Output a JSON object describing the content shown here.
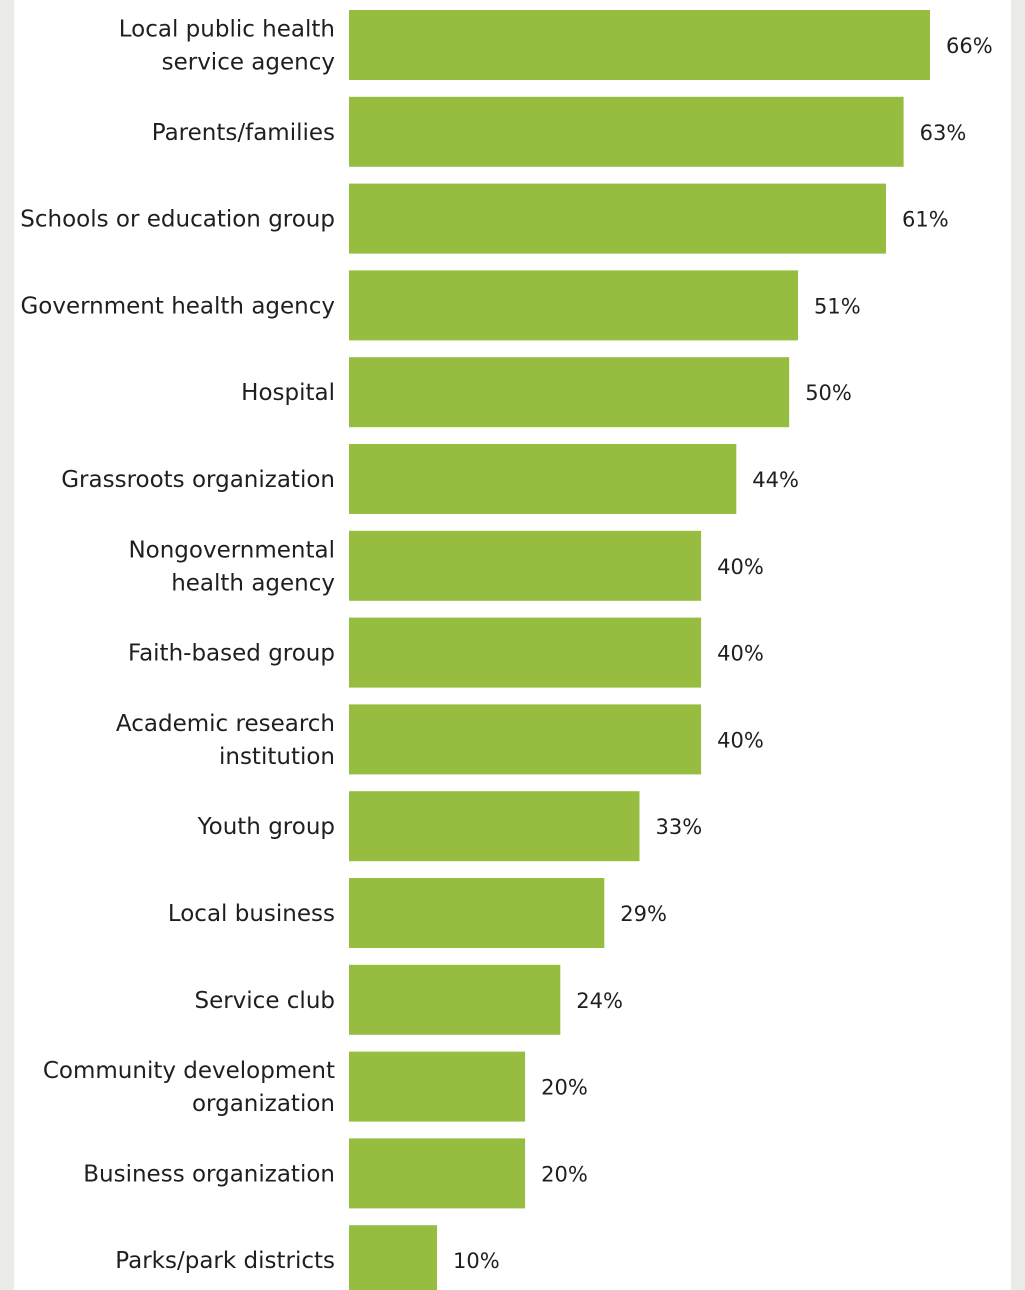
{
  "chart_data": {
    "type": "bar",
    "orientation": "horizontal",
    "categories": [
      "Local public health service agency",
      "Parents/families",
      "Schools or education group",
      "Government health agency",
      "Hospital",
      "Grassroots organization",
      "Nongovernmental health agency",
      "Faith-based group",
      "Academic research institution",
      "Youth group",
      "Local business",
      "Service club",
      "Community development organization",
      "Business organization",
      "Parks/park districts"
    ],
    "category_lines": [
      [
        "Local public health",
        "service agency"
      ],
      [
        "Parents/families"
      ],
      [
        "Schools or education group"
      ],
      [
        "Government health agency"
      ],
      [
        "Hospital"
      ],
      [
        "Grassroots organization"
      ],
      [
        "Nongovernmental",
        "health agency"
      ],
      [
        "Faith-based group"
      ],
      [
        "Academic research",
        "institution"
      ],
      [
        "Youth group"
      ],
      [
        "Local business"
      ],
      [
        "Service club"
      ],
      [
        "Community development",
        "organization"
      ],
      [
        "Business organization"
      ],
      [
        "Parks/park districts"
      ]
    ],
    "values": [
      66,
      63,
      61,
      51,
      50,
      44,
      40,
      40,
      40,
      33,
      29,
      24,
      20,
      20,
      10
    ],
    "value_labels": [
      "66%",
      "63%",
      "61%",
      "51%",
      "50%",
      "44%",
      "40%",
      "40%",
      "40%",
      "33%",
      "29%",
      "24%",
      "20%",
      "20%",
      "10%"
    ],
    "bar_color": "#96bd3f",
    "grid": false,
    "legend": "none"
  }
}
